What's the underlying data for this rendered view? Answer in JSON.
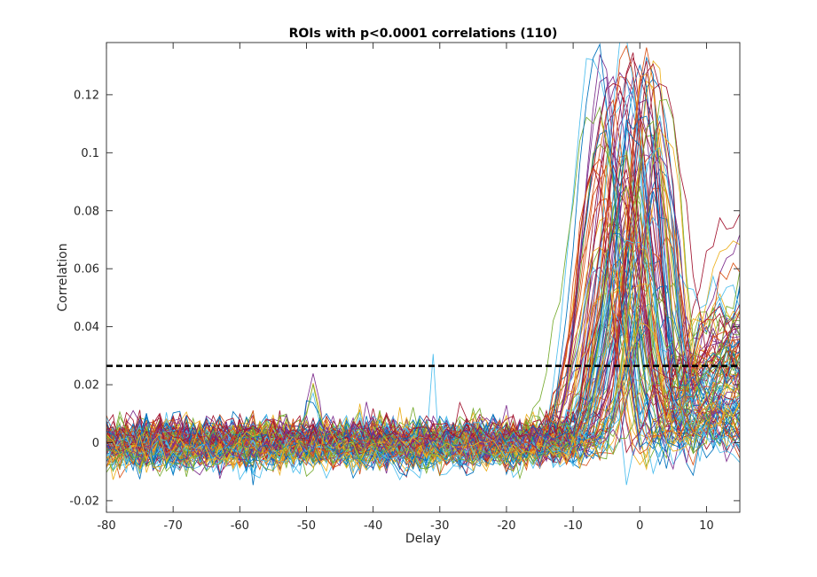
{
  "chart_data": {
    "type": "line",
    "title": "ROIs with p<0.0001 correlations (110)",
    "xlabel": "Delay",
    "ylabel": "Correlation",
    "xlim": [
      -80,
      15
    ],
    "ylim": [
      -0.024,
      0.138
    ],
    "xticks": [
      -80,
      -70,
      -60,
      -50,
      -40,
      -30,
      -20,
      -10,
      0,
      10
    ],
    "xtick_labels": [
      "-80",
      "-70",
      "-60",
      "-50",
      "-40",
      "-30",
      "-20",
      "-10",
      "0",
      "10"
    ],
    "yticks": [
      -0.02,
      0,
      0.02,
      0.04,
      0.06,
      0.08,
      0.1,
      0.12
    ],
    "ytick_labels": [
      "-0.02",
      "0",
      "0.02",
      "0.04",
      "0.06",
      "0.08",
      "0.1",
      "0.12"
    ],
    "grid": false,
    "n_series": 110,
    "series_colors": [
      "#0072BD",
      "#D95319",
      "#EDB120",
      "#7E2F8E",
      "#77AC30",
      "#4DBEEE",
      "#A2142F"
    ],
    "threshold": {
      "y": 0.0265,
      "x_range": [
        -80,
        15
      ],
      "style": "dashed",
      "color": "#000000"
    },
    "series_shape": {
      "baseline_range": [
        -0.02,
        0.02
      ],
      "rise_start_x": -10,
      "peak_x_range": [
        -7,
        4
      ],
      "peak_y_range": [
        0.035,
        0.138
      ],
      "post_peak_dip_x": 6,
      "end_y_range": [
        0.0,
        0.09
      ]
    }
  }
}
